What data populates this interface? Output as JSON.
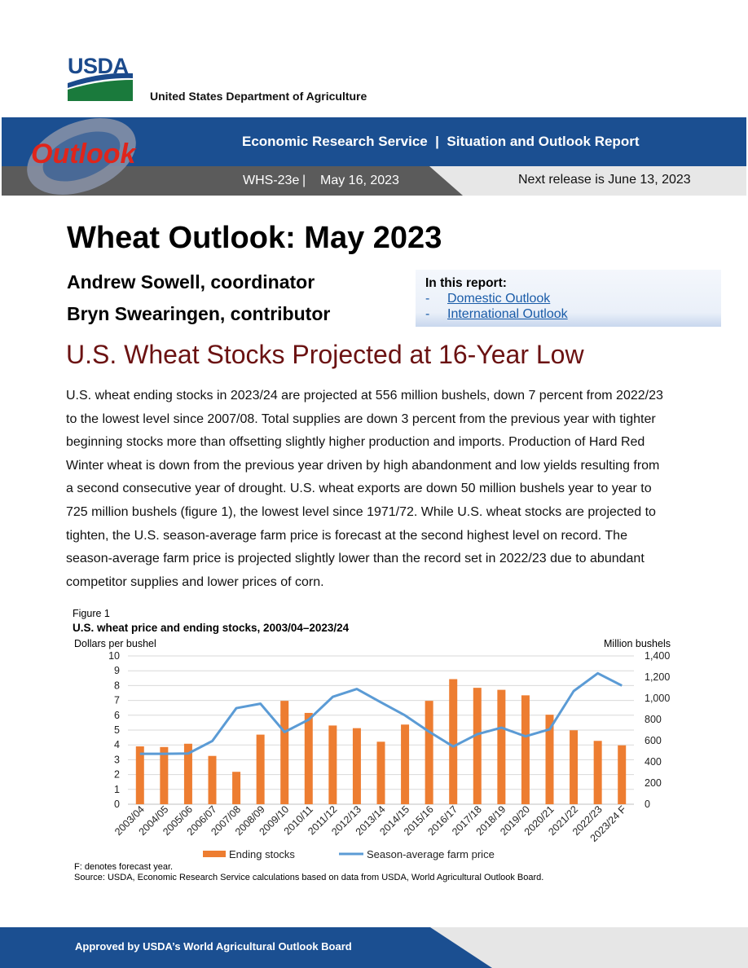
{
  "header": {
    "agency_logo": "USDA",
    "department": "United States Department of Agriculture",
    "badge": "Outlook",
    "series": "Economic Research Service  |  Situation and Outlook Report",
    "report_id": "WHS-23e",
    "date": "May 16, 2023",
    "next_release": "Next release is June 13, 2023"
  },
  "title": "Wheat Outlook: May 2023",
  "authors": [
    "Andrew Sowell, coordinator",
    "Bryn Swearingen, contributor"
  ],
  "toc": {
    "heading": "In this report:",
    "items": [
      {
        "dash": "-",
        "label": "Domestic Outlook"
      },
      {
        "dash": "-",
        "label": "International Outlook"
      }
    ]
  },
  "headline": "U.S. Wheat Stocks Projected at 16-Year Low",
  "body_lines": [
    "U.S. wheat ending stocks in 2023/24 are projected at 556 million bushels, down 7 percent from 2022/23",
    "to the lowest level since 2007/08. Total supplies are down 3 percent from the previous year with tighter",
    "beginning stocks more than offsetting slightly higher production and imports. Production of Hard Red",
    "Winter wheat is down from the previous year driven by high abandonment and low yields resulting from",
    "a second consecutive year of drought. U.S. wheat exports are down 50 million bushels year to year to",
    "725 million bushels (figure 1), the lowest level since 1971/72. While U.S. wheat stocks are projected to",
    "tighten, the U.S. season-average farm price is forecast at the second highest level on record. The",
    "season-average farm price is projected slightly lower than the record set in 2022/23 due to abundant",
    "competitor supplies and lower prices of corn."
  ],
  "figure": {
    "label": "Figure 1",
    "title": "U.S. wheat price and ending stocks, 2003/04–2023/24",
    "note": "F: denotes forecast year.",
    "source": "Source: USDA, Economic Research Service calculations based on data from USDA, World Agricultural Outlook Board."
  },
  "chart_data": {
    "type": "bar",
    "categories": [
      "2003/04",
      "2004/05",
      "2005/06",
      "2006/07",
      "2007/08",
      "2008/09",
      "2009/10",
      "2010/11",
      "2011/12",
      "2012/13",
      "2013/14",
      "2014/15",
      "2015/16",
      "2016/17",
      "2017/18",
      "2018/19",
      "2019/20",
      "2020/21",
      "2021/22",
      "2022/23",
      "2023/24 F"
    ],
    "series": [
      {
        "name": "Ending stocks",
        "type": "bar",
        "axis": "right",
        "color": "#ed7d31",
        "values": [
          546,
          540,
          571,
          456,
          306,
          657,
          976,
          862,
          743,
          718,
          590,
          752,
          976,
          1181,
          1099,
          1080,
          1028,
          845,
          698,
          598,
          556
        ]
      },
      {
        "name": "Season-average farm price",
        "type": "line",
        "axis": "left",
        "color": "#5b9bd5",
        "values": [
          3.4,
          3.4,
          3.42,
          4.26,
          6.48,
          6.78,
          4.87,
          5.7,
          7.24,
          7.77,
          6.87,
          5.99,
          4.89,
          3.89,
          4.72,
          5.16,
          4.58,
          5.05,
          7.63,
          8.83,
          8.0
        ]
      }
    ],
    "y_left": {
      "label": "Dollars per bushel",
      "min": 0,
      "max": 10,
      "ticks": [
        "0",
        "1",
        "2",
        "3",
        "4",
        "5",
        "6",
        "7",
        "8",
        "9",
        "10"
      ]
    },
    "y_right": {
      "label": "Million bushels",
      "min": 0,
      "max": 1400,
      "ticks": [
        "0",
        "200",
        "400",
        "600",
        "800",
        "1,000",
        "1,200",
        "1,400"
      ]
    },
    "grid": true,
    "legend": "bottom"
  },
  "footer": "Approved by USDA’s World Agricultural Outlook Board"
}
